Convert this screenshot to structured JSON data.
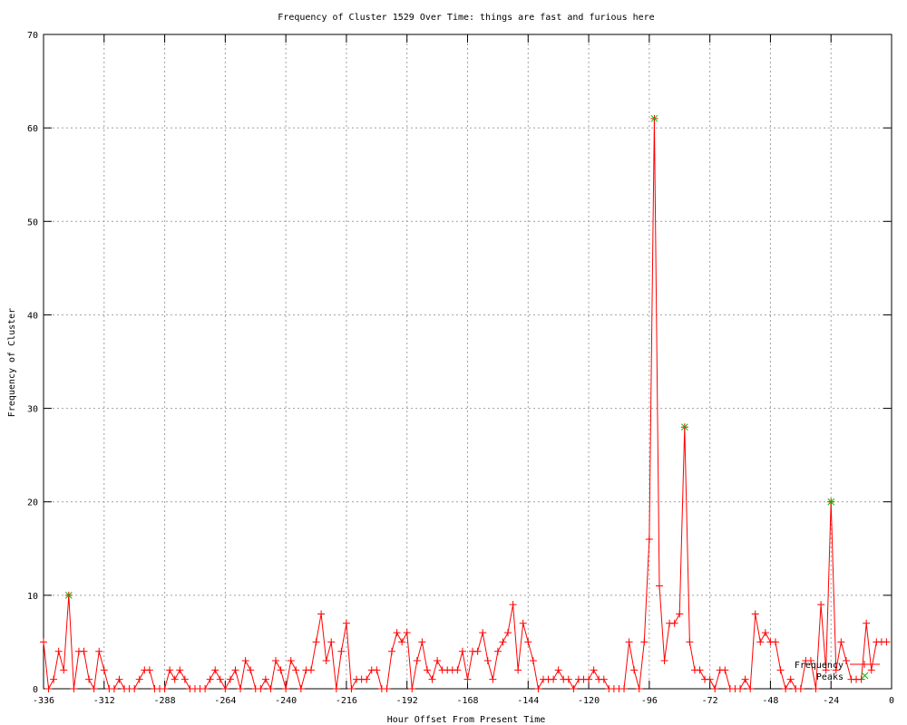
{
  "chart_data": {
    "type": "line",
    "title": "Frequency of Cluster 1529 Over Time: things are fast and furious here",
    "xlabel": "Hour Offset From Present Time",
    "ylabel": "Frequency of Cluster",
    "xlim": [
      -336,
      0
    ],
    "ylim": [
      0,
      70
    ],
    "xticks": [
      -336,
      -312,
      -288,
      -264,
      -240,
      -216,
      -192,
      -168,
      -144,
      -120,
      -96,
      -72,
      -48,
      -24,
      0
    ],
    "yticks": [
      0,
      10,
      20,
      30,
      40,
      50,
      60,
      70
    ],
    "grid": true,
    "legend_position": "bottom-right",
    "series": [
      {
        "name": "Frequency",
        "color": "#ff0000",
        "marker": "plus",
        "x_start": -336,
        "x_step": 2,
        "values": [
          5,
          0,
          1,
          4,
          2,
          10,
          0,
          4,
          4,
          1,
          0,
          4,
          2,
          0,
          0,
          1,
          0,
          0,
          0,
          1,
          2,
          2,
          0,
          0,
          0,
          2,
          1,
          2,
          1,
          0,
          0,
          0,
          0,
          1,
          2,
          1,
          0,
          1,
          2,
          0,
          3,
          2,
          0,
          0,
          1,
          0,
          3,
          2,
          0,
          3,
          2,
          0,
          2,
          2,
          5,
          8,
          3,
          5,
          0,
          4,
          7,
          0,
          1,
          1,
          1,
          2,
          2,
          0,
          0,
          4,
          6,
          5,
          6,
          0,
          3,
          5,
          2,
          1,
          3,
          2,
          2,
          2,
          2,
          4,
          1,
          4,
          4,
          6,
          3,
          1,
          4,
          5,
          6,
          9,
          2,
          7,
          5,
          3,
          0,
          1,
          1,
          1,
          2,
          1,
          1,
          0,
          1,
          1,
          1,
          2,
          1,
          1,
          0,
          0,
          0,
          0,
          5,
          2,
          0,
          5,
          16,
          61,
          11,
          3,
          7,
          7,
          8,
          28,
          5,
          2,
          2,
          1,
          1,
          0,
          2,
          2,
          0,
          0,
          0,
          1,
          0,
          8,
          5,
          6,
          5,
          5,
          2,
          0,
          1,
          0,
          0,
          3,
          3,
          0,
          9,
          2,
          20,
          2,
          5,
          3,
          1,
          1,
          1,
          7,
          2,
          5,
          5,
          5
        ]
      },
      {
        "name": "Peaks",
        "color": "#00c000",
        "marker": "x",
        "points": [
          [
            -326,
            10
          ],
          [
            -94,
            61
          ],
          [
            -82,
            28
          ],
          [
            -24,
            20
          ]
        ]
      }
    ]
  }
}
